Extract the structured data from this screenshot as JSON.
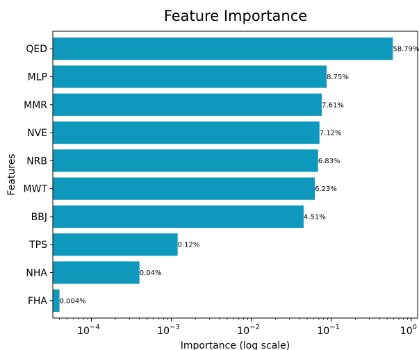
{
  "chart_data": {
    "type": "bar",
    "orientation": "horizontal",
    "title": "Feature Importance",
    "xlabel": "Importance (log scale)",
    "ylabel": "Features",
    "x_scale": "log",
    "xlim": [
      3.3e-05,
      1.2
    ],
    "x_ticks": [
      {
        "value": 0.0001,
        "base": "10",
        "exp": "−4"
      },
      {
        "value": 0.001,
        "base": "10",
        "exp": "−3"
      },
      {
        "value": 0.01,
        "base": "10",
        "exp": "−2"
      },
      {
        "value": 0.1,
        "base": "10",
        "exp": "−1"
      },
      {
        "value": 1,
        "base": "10",
        "exp": "0"
      }
    ],
    "bar_color": "#0e98bc",
    "grid": false,
    "bars": [
      {
        "category": "QED",
        "value": 0.5879,
        "label": "58.79%"
      },
      {
        "category": "MLP",
        "value": 0.0875,
        "label": "8.75%"
      },
      {
        "category": "MMR",
        "value": 0.0761,
        "label": "7.61%"
      },
      {
        "category": "NVE",
        "value": 0.0712,
        "label": "7.12%"
      },
      {
        "category": "NRB",
        "value": 0.0683,
        "label": "6.83%"
      },
      {
        "category": "MWT",
        "value": 0.0623,
        "label": "6.23%"
      },
      {
        "category": "BBJ",
        "value": 0.0451,
        "label": "4.51%"
      },
      {
        "category": "TPS",
        "value": 0.0012,
        "label": "0.12%"
      },
      {
        "category": "NHA",
        "value": 0.0004,
        "label": "0.04%"
      },
      {
        "category": "FHA",
        "value": 4e-05,
        "label": "0.004%"
      }
    ]
  }
}
